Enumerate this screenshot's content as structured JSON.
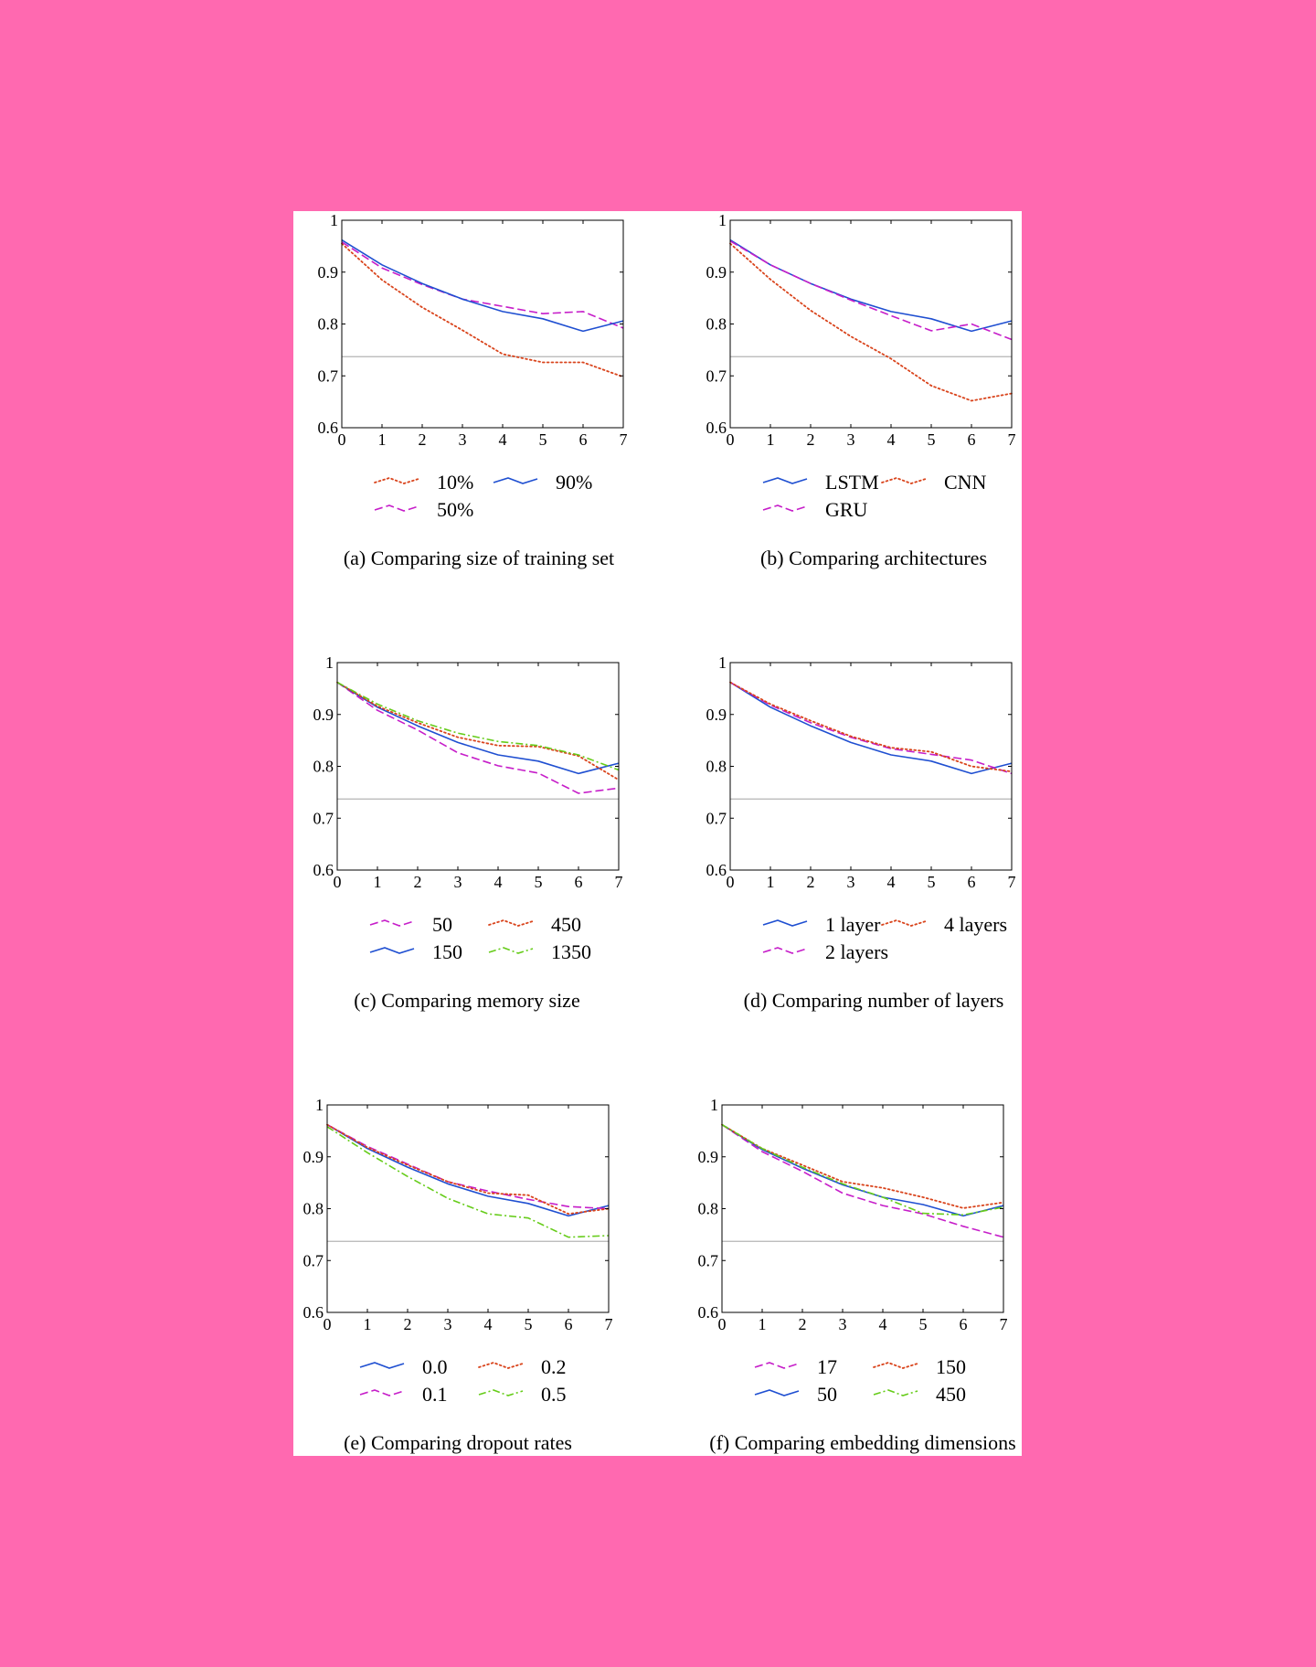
{
  "background_color": "#ff69b0",
  "colors": {
    "blue": "#1f4fd1",
    "red": "#d9441c",
    "magenta": "#c61ec9",
    "green": "#66cc1a",
    "baseline": "#b4b4b4"
  },
  "chart_data": [
    {
      "type": "line",
      "caption": "(a) Comparing size of training set",
      "x": [
        0,
        1,
        2,
        3,
        4,
        5,
        6,
        7
      ],
      "xlim": [
        0,
        7
      ],
      "ylim": [
        0.6,
        1
      ],
      "xticks": [
        "0",
        "1",
        "2",
        "3",
        "4",
        "5",
        "6",
        "7"
      ],
      "yticks": [
        "0.6",
        "0.7",
        "0.8",
        "0.9",
        "1"
      ],
      "baseline": 0.737,
      "legend": {
        "placement": "below",
        "columns": 2
      },
      "series": [
        {
          "name": "10%",
          "color": "red",
          "style": "dotted",
          "values": [
            0.955,
            0.885,
            0.832,
            0.788,
            0.742,
            0.726,
            0.726,
            0.698
          ]
        },
        {
          "name": "50%",
          "color": "magenta",
          "style": "dashed",
          "values": [
            0.958,
            0.908,
            0.876,
            0.848,
            0.834,
            0.82,
            0.824,
            0.792
          ]
        },
        {
          "name": "90%",
          "color": "blue",
          "style": "solid",
          "values": [
            0.962,
            0.914,
            0.878,
            0.848,
            0.824,
            0.81,
            0.786,
            0.806
          ]
        }
      ]
    },
    {
      "type": "line",
      "caption": "(b) Comparing architectures",
      "x": [
        0,
        1,
        2,
        3,
        4,
        5,
        6,
        7
      ],
      "xlim": [
        0,
        7
      ],
      "ylim": [
        0.6,
        1
      ],
      "xticks": [
        "0",
        "1",
        "2",
        "3",
        "4",
        "5",
        "6",
        "7"
      ],
      "yticks": [
        "0.6",
        "0.7",
        "0.8",
        "0.9",
        "1"
      ],
      "baseline": 0.737,
      "legend": {
        "placement": "below",
        "columns": 2
      },
      "series": [
        {
          "name": "LSTM",
          "color": "blue",
          "style": "solid",
          "values": [
            0.962,
            0.914,
            0.878,
            0.848,
            0.824,
            0.81,
            0.786,
            0.806
          ]
        },
        {
          "name": "GRU",
          "color": "magenta",
          "style": "dashed",
          "values": [
            0.96,
            0.914,
            0.878,
            0.846,
            0.816,
            0.787,
            0.8,
            0.77
          ]
        },
        {
          "name": "CNN",
          "color": "red",
          "style": "dotted",
          "values": [
            0.955,
            0.886,
            0.826,
            0.776,
            0.733,
            0.681,
            0.652,
            0.666
          ]
        }
      ]
    },
    {
      "type": "line",
      "caption": "(c) Comparing memory size",
      "x": [
        0,
        1,
        2,
        3,
        4,
        5,
        6,
        7
      ],
      "xlim": [
        0,
        7
      ],
      "ylim": [
        0.6,
        1
      ],
      "xticks": [
        "0",
        "1",
        "2",
        "3",
        "4",
        "5",
        "6",
        "7"
      ],
      "yticks": [
        "0.6",
        "0.7",
        "0.8",
        "0.9",
        "1"
      ],
      "baseline": 0.737,
      "legend": {
        "placement": "below",
        "columns": 2
      },
      "series": [
        {
          "name": "50",
          "color": "magenta",
          "style": "dashed",
          "values": [
            0.962,
            0.908,
            0.87,
            0.826,
            0.801,
            0.787,
            0.748,
            0.758
          ]
        },
        {
          "name": "150",
          "color": "blue",
          "style": "solid",
          "values": [
            0.962,
            0.914,
            0.878,
            0.846,
            0.822,
            0.81,
            0.786,
            0.806
          ]
        },
        {
          "name": "450",
          "color": "red",
          "style": "dotted",
          "values": [
            0.962,
            0.916,
            0.884,
            0.856,
            0.84,
            0.838,
            0.82,
            0.774
          ]
        },
        {
          "name": "1350",
          "color": "green",
          "style": "dashdot",
          "values": [
            0.962,
            0.92,
            0.888,
            0.864,
            0.848,
            0.84,
            0.822,
            0.793
          ]
        }
      ]
    },
    {
      "type": "line",
      "caption": "(d) Comparing number of layers",
      "x": [
        0,
        1,
        2,
        3,
        4,
        5,
        6,
        7
      ],
      "xlim": [
        0,
        7
      ],
      "ylim": [
        0.6,
        1
      ],
      "xticks": [
        "0",
        "1",
        "2",
        "3",
        "4",
        "5",
        "6",
        "7"
      ],
      "yticks": [
        "0.6",
        "0.7",
        "0.8",
        "0.9",
        "1"
      ],
      "baseline": 0.737,
      "legend": {
        "placement": "below",
        "columns": 2
      },
      "series": [
        {
          "name": "1 layer",
          "color": "blue",
          "style": "solid",
          "values": [
            0.962,
            0.914,
            0.878,
            0.846,
            0.822,
            0.81,
            0.786,
            0.806
          ]
        },
        {
          "name": "2 layers",
          "color": "magenta",
          "style": "dashed",
          "values": [
            0.962,
            0.918,
            0.884,
            0.856,
            0.834,
            0.823,
            0.812,
            0.786
          ]
        },
        {
          "name": "4 layers",
          "color": "red",
          "style": "dotted",
          "values": [
            0.962,
            0.92,
            0.888,
            0.858,
            0.836,
            0.828,
            0.8,
            0.79
          ]
        }
      ]
    },
    {
      "type": "line",
      "caption": "(e) Comparing dropout rates",
      "x": [
        0,
        1,
        2,
        3,
        4,
        5,
        6,
        7
      ],
      "xlim": [
        0,
        7
      ],
      "ylim": [
        0.6,
        1
      ],
      "xticks": [
        "0",
        "1",
        "2",
        "3",
        "4",
        "5",
        "6",
        "7"
      ],
      "yticks": [
        "0.6",
        "0.7",
        "0.8",
        "0.9",
        "1"
      ],
      "baseline": 0.737,
      "legend": {
        "placement": "below",
        "columns": 2
      },
      "series": [
        {
          "name": "0.0",
          "color": "blue",
          "style": "solid",
          "values": [
            0.962,
            0.916,
            0.88,
            0.848,
            0.824,
            0.81,
            0.786,
            0.806
          ]
        },
        {
          "name": "0.1",
          "color": "magenta",
          "style": "dashed",
          "values": [
            0.962,
            0.92,
            0.886,
            0.852,
            0.834,
            0.818,
            0.804,
            0.8
          ]
        },
        {
          "name": "0.2",
          "color": "red",
          "style": "dotted",
          "values": [
            0.962,
            0.918,
            0.884,
            0.852,
            0.83,
            0.826,
            0.79,
            0.8
          ]
        },
        {
          "name": "0.5",
          "color": "green",
          "style": "dashdot",
          "values": [
            0.958,
            0.908,
            0.862,
            0.82,
            0.79,
            0.782,
            0.745,
            0.748
          ]
        }
      ]
    },
    {
      "type": "line",
      "caption": "(f) Comparing embedding dimensions",
      "x": [
        0,
        1,
        2,
        3,
        4,
        5,
        6,
        7
      ],
      "xlim": [
        0,
        7
      ],
      "ylim": [
        0.6,
        1
      ],
      "xticks": [
        "0",
        "1",
        "2",
        "3",
        "4",
        "5",
        "6",
        "7"
      ],
      "yticks": [
        "0.6",
        "0.7",
        "0.8",
        "0.9",
        "1"
      ],
      "baseline": 0.737,
      "legend": {
        "placement": "below",
        "columns": 2
      },
      "series": [
        {
          "name": "17",
          "color": "magenta",
          "style": "dashed",
          "values": [
            0.962,
            0.91,
            0.872,
            0.83,
            0.806,
            0.79,
            0.766,
            0.745
          ]
        },
        {
          "name": "50",
          "color": "blue",
          "style": "solid",
          "values": [
            0.962,
            0.914,
            0.878,
            0.846,
            0.822,
            0.808,
            0.786,
            0.806
          ]
        },
        {
          "name": "150",
          "color": "red",
          "style": "dotted",
          "values": [
            0.962,
            0.916,
            0.884,
            0.852,
            0.84,
            0.822,
            0.801,
            0.812
          ]
        },
        {
          "name": "450",
          "color": "green",
          "style": "dashdot",
          "values": [
            0.962,
            0.916,
            0.88,
            0.848,
            0.822,
            0.791,
            0.788,
            0.803
          ]
        }
      ]
    }
  ]
}
